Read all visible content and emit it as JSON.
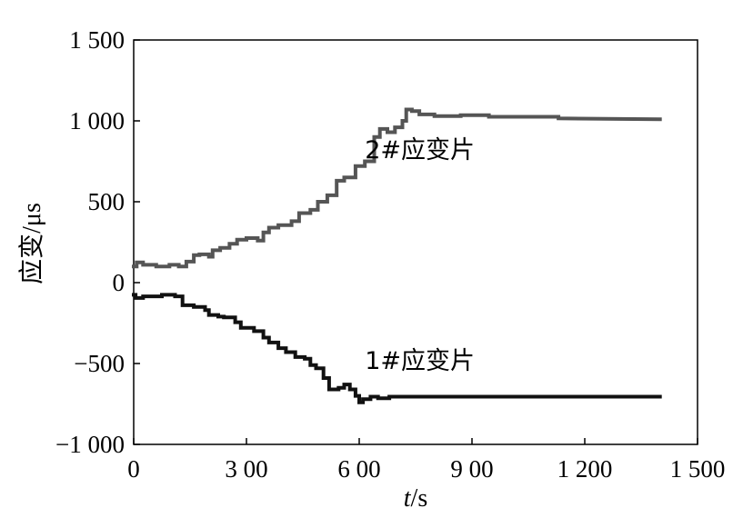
{
  "chart_data": {
    "type": "line",
    "xlabel_italic": "t",
    "xlabel_unit": "/s",
    "ylabel": "应变/μs",
    "xlim": [
      0,
      1500
    ],
    "ylim": [
      -1000,
      1500
    ],
    "grid": false,
    "x_ticks": [
      0,
      300,
      600,
      900,
      1200,
      1500
    ],
    "x_tick_labels": [
      "0",
      "3 00",
      "6 00",
      "9 00",
      "1 200",
      "1 500"
    ],
    "y_ticks": [
      -1000,
      -500,
      0,
      500,
      1000,
      1500
    ],
    "y_tick_labels": [
      "−1 000",
      "−500",
      "0",
      "500",
      "1 000",
      "1 500"
    ],
    "series": [
      {
        "name": "2#应变片",
        "color": "#555555",
        "points": [
          [
            0,
            100
          ],
          [
            8,
            100
          ],
          [
            8,
            125
          ],
          [
            25,
            125
          ],
          [
            25,
            110
          ],
          [
            60,
            110
          ],
          [
            60,
            100
          ],
          [
            95,
            100
          ],
          [
            95,
            110
          ],
          [
            120,
            110
          ],
          [
            120,
            100
          ],
          [
            140,
            100
          ],
          [
            140,
            130
          ],
          [
            160,
            130
          ],
          [
            160,
            170
          ],
          [
            175,
            170
          ],
          [
            175,
            175
          ],
          [
            200,
            175
          ],
          [
            200,
            160
          ],
          [
            210,
            160
          ],
          [
            210,
            200
          ],
          [
            230,
            200
          ],
          [
            230,
            215
          ],
          [
            255,
            215
          ],
          [
            255,
            240
          ],
          [
            275,
            240
          ],
          [
            275,
            265
          ],
          [
            300,
            265
          ],
          [
            300,
            275
          ],
          [
            330,
            275
          ],
          [
            330,
            260
          ],
          [
            345,
            260
          ],
          [
            345,
            310
          ],
          [
            360,
            310
          ],
          [
            360,
            340
          ],
          [
            385,
            340
          ],
          [
            385,
            355
          ],
          [
            420,
            355
          ],
          [
            420,
            380
          ],
          [
            440,
            380
          ],
          [
            440,
            430
          ],
          [
            470,
            430
          ],
          [
            470,
            450
          ],
          [
            490,
            450
          ],
          [
            490,
            500
          ],
          [
            515,
            500
          ],
          [
            515,
            540
          ],
          [
            540,
            540
          ],
          [
            540,
            630
          ],
          [
            560,
            630
          ],
          [
            560,
            650
          ],
          [
            590,
            650
          ],
          [
            590,
            720
          ],
          [
            615,
            720
          ],
          [
            615,
            750
          ],
          [
            640,
            750
          ],
          [
            640,
            900
          ],
          [
            655,
            900
          ],
          [
            655,
            950
          ],
          [
            675,
            950
          ],
          [
            675,
            930
          ],
          [
            695,
            930
          ],
          [
            695,
            960
          ],
          [
            715,
            960
          ],
          [
            715,
            1000
          ],
          [
            725,
            1000
          ],
          [
            725,
            1070
          ],
          [
            740,
            1070
          ],
          [
            740,
            1060
          ],
          [
            760,
            1060
          ],
          [
            760,
            1040
          ],
          [
            800,
            1040
          ],
          [
            800,
            1030
          ],
          [
            870,
            1030
          ],
          [
            870,
            1035
          ],
          [
            945,
            1035
          ],
          [
            945,
            1025
          ],
          [
            1130,
            1025
          ],
          [
            1130,
            1015
          ],
          [
            1400,
            1010
          ]
        ]
      },
      {
        "name": "1#应变片",
        "color": "#111111",
        "points": [
          [
            0,
            -75
          ],
          [
            5,
            -75
          ],
          [
            5,
            -95
          ],
          [
            25,
            -95
          ],
          [
            25,
            -85
          ],
          [
            75,
            -85
          ],
          [
            75,
            -75
          ],
          [
            110,
            -75
          ],
          [
            110,
            -85
          ],
          [
            130,
            -85
          ],
          [
            130,
            -140
          ],
          [
            160,
            -140
          ],
          [
            160,
            -150
          ],
          [
            190,
            -150
          ],
          [
            190,
            -170
          ],
          [
            200,
            -170
          ],
          [
            200,
            -200
          ],
          [
            225,
            -200
          ],
          [
            225,
            -210
          ],
          [
            240,
            -210
          ],
          [
            240,
            -215
          ],
          [
            270,
            -215
          ],
          [
            270,
            -245
          ],
          [
            285,
            -245
          ],
          [
            285,
            -280
          ],
          [
            320,
            -280
          ],
          [
            320,
            -300
          ],
          [
            345,
            -300
          ],
          [
            345,
            -340
          ],
          [
            360,
            -340
          ],
          [
            360,
            -370
          ],
          [
            385,
            -370
          ],
          [
            385,
            -405
          ],
          [
            405,
            -405
          ],
          [
            405,
            -430
          ],
          [
            430,
            -430
          ],
          [
            430,
            -460
          ],
          [
            455,
            -460
          ],
          [
            455,
            -470
          ],
          [
            470,
            -470
          ],
          [
            470,
            -510
          ],
          [
            485,
            -510
          ],
          [
            485,
            -530
          ],
          [
            505,
            -530
          ],
          [
            505,
            -590
          ],
          [
            520,
            -590
          ],
          [
            520,
            -660
          ],
          [
            545,
            -660
          ],
          [
            545,
            -650
          ],
          [
            560,
            -650
          ],
          [
            560,
            -630
          ],
          [
            575,
            -630
          ],
          [
            575,
            -660
          ],
          [
            590,
            -660
          ],
          [
            590,
            -700
          ],
          [
            600,
            -700
          ],
          [
            600,
            -740
          ],
          [
            610,
            -740
          ],
          [
            610,
            -720
          ],
          [
            630,
            -720
          ],
          [
            630,
            -705
          ],
          [
            650,
            -705
          ],
          [
            650,
            -715
          ],
          [
            680,
            -715
          ],
          [
            680,
            -705
          ],
          [
            1400,
            -705
          ]
        ]
      }
    ],
    "annotations": [
      {
        "text": "2#应变片",
        "x": 615,
        "y": 770
      },
      {
        "text": "1#应变片",
        "x": 615,
        "y": -535
      }
    ]
  }
}
